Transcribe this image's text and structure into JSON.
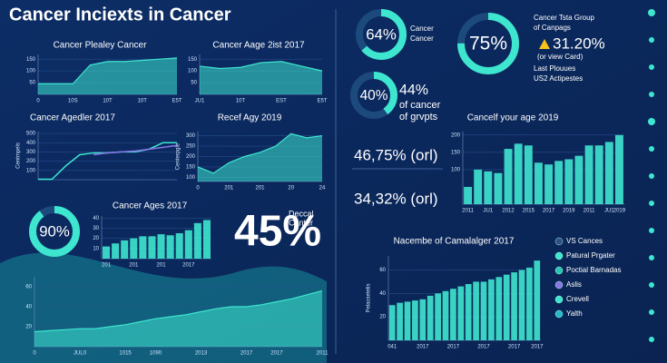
{
  "title": "Cancer Inciexts in Cancer",
  "chart_data": [
    {
      "type": "area",
      "title": "Cancer Plealey Cancer",
      "color": "#3ee6cf",
      "categories": [
        "0",
        null,
        "10S",
        null,
        "10T",
        null,
        "10T",
        null,
        "E5T"
      ],
      "values": [
        45,
        45,
        45,
        125,
        140,
        140,
        145,
        150,
        155
      ],
      "ylim": [
        0,
        170
      ],
      "yticks": [
        50,
        100,
        150
      ]
    },
    {
      "type": "area",
      "title": "Cancer Aage 2ist 2017",
      "color": "#3ee6cf",
      "categories": [
        "JU1",
        null,
        "10T",
        null,
        "EST",
        null,
        "E5T"
      ],
      "values": [
        120,
        110,
        115,
        135,
        140,
        120,
        100
      ],
      "ylim": [
        0,
        170
      ],
      "yticks": [
        50,
        100,
        150
      ]
    },
    {
      "type": "line",
      "title": "Cancer Agedler 2017",
      "y_label": "Centmpels",
      "categories": [
        null,
        null,
        null,
        null,
        null,
        null,
        null,
        null,
        null,
        null,
        null
      ],
      "series": [
        {
          "name": "Teal",
          "color": "#3ee6cf",
          "values": [
            5,
            5,
            150,
            270,
            290,
            290,
            300,
            300,
            330,
            400,
            400
          ]
        },
        {
          "name": "Purple",
          "color": "#8a74e6",
          "values": [
            null,
            null,
            null,
            null,
            270,
            290,
            300,
            310,
            330,
            350,
            370
          ]
        }
      ],
      "ylim": [
        0,
        520
      ],
      "yticks": [
        100,
        200,
        300,
        400,
        500
      ]
    },
    {
      "type": "area",
      "title": "Recef Agy 2019",
      "y_label": "Centerpgle",
      "color": "#3ee6cf",
      "categories": [
        "0",
        null,
        "201",
        null,
        "201",
        null,
        "20",
        null,
        "24"
      ],
      "values": [
        150,
        120,
        170,
        200,
        220,
        250,
        310,
        290,
        300
      ],
      "ylim": [
        80,
        320
      ],
      "yticks": [
        100,
        150,
        200,
        250,
        300
      ]
    },
    {
      "type": "bar",
      "title": "Cancer Ages 2017",
      "color": "#3ee6cf",
      "categories": [
        "201",
        null,
        null,
        "201",
        null,
        null,
        "201",
        null,
        null,
        "2017",
        null,
        null
      ],
      "values": [
        12,
        15,
        18,
        20,
        22,
        22,
        24,
        23,
        25,
        28,
        35,
        38
      ],
      "ylim": [
        0,
        42
      ],
      "yticks": [
        10,
        20,
        30,
        40
      ]
    },
    {
      "type": "area",
      "color": "#3ee6cf",
      "categories": [
        "0",
        null,
        null,
        "JUL0",
        null,
        null,
        "1015",
        null,
        "1090",
        null,
        null,
        "2013",
        null,
        null,
        "2017",
        null,
        "2017",
        null,
        null,
        "2011"
      ],
      "values": [
        15,
        16,
        17,
        18,
        18,
        20,
        22,
        25,
        28,
        30,
        32,
        35,
        38,
        40,
        40,
        42,
        45,
        48,
        52,
        56
      ],
      "ylim": [
        0,
        70
      ],
      "yticks": [
        20,
        40,
        60
      ]
    },
    {
      "type": "bar",
      "title": "Cancelf your age 2019",
      "color": "#3ee6cf",
      "categories": [
        "2011",
        null,
        "JU1",
        null,
        "2012",
        null,
        "2015",
        null,
        "2017",
        null,
        "2019",
        null,
        "2011",
        null,
        "JU1",
        "2019"
      ],
      "values": [
        50,
        100,
        95,
        90,
        160,
        175,
        170,
        120,
        115,
        125,
        130,
        140,
        170,
        170,
        180,
        200
      ],
      "ylim": [
        0,
        210
      ],
      "yticks": [
        100,
        150,
        200
      ]
    },
    {
      "type": "bar",
      "title": "Nacembe of Camalalger 2017",
      "y_label": "Pelacsetelis",
      "color": "#3ee6cf",
      "categories": [
        "041",
        null,
        null,
        null,
        "2017",
        null,
        null,
        null,
        "2017",
        null,
        null,
        null,
        "2017",
        null,
        null,
        null,
        "2017",
        null,
        null,
        "2017"
      ],
      "values": [
        30,
        32,
        33,
        34,
        35,
        38,
        40,
        42,
        44,
        46,
        48,
        50,
        50,
        52,
        54,
        56,
        58,
        60,
        62,
        68
      ],
      "ylim": [
        0,
        72
      ],
      "yticks": [
        20,
        40,
        60
      ],
      "legend_items": [
        {
          "name": "VS Cances",
          "color": "#2f4f86"
        },
        {
          "name": "Patural Prgater",
          "color": "#3ee6cf"
        },
        {
          "name": "Poctial Barnadas",
          "color": "#2cc4b4"
        },
        {
          "name": "Aslis",
          "color": "#8a74e6"
        },
        {
          "name": "Crevell",
          "color": "#3ee6cf"
        },
        {
          "name": "Yalth",
          "color": "#29b8c9"
        }
      ]
    },
    {
      "type": "donut",
      "value": 90,
      "value_label": "90%",
      "color": "#3ee6cf"
    },
    {
      "type": "donut",
      "value": 64,
      "value_label": "64%",
      "color": "#3ee6cf"
    },
    {
      "type": "donut",
      "value": 75,
      "value_label": "75%",
      "color": "#3ee6cf"
    },
    {
      "type": "donut",
      "value": 40,
      "value_label": "40%",
      "color": "#3ee6cf"
    }
  ],
  "stats": {
    "big": "45%",
    "big_caption": [
      "Deccal",
      "Canter"
    ],
    "donut64_caption": [
      "Cancer",
      "Cancer"
    ],
    "donut75_caption": [
      "Cancer Tsta Group",
      "of Canpags"
    ],
    "warn": "31.20%",
    "warn_note": "(or view Card)",
    "last": [
      "Last Plouues",
      "US2 Actipestes"
    ],
    "p44": "44%",
    "p44_caption": [
      "of cancer",
      "of grvpts"
    ],
    "s1": "46,75% (orl)",
    "s2": "34,32% (orl)"
  }
}
